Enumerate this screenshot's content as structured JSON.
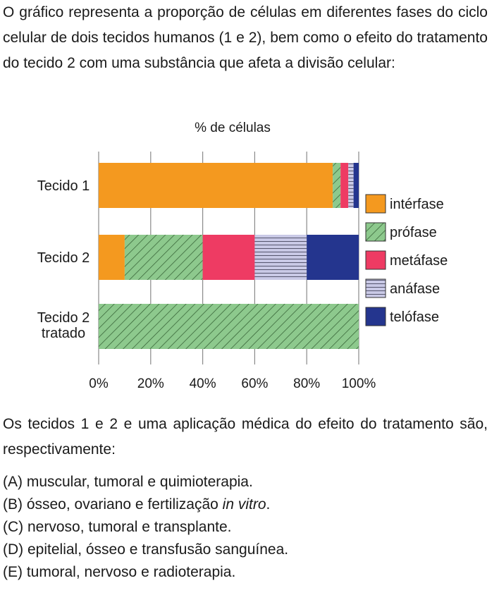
{
  "intro_text": "O gráfico representa a proporção de células em diferentes fases do ciclo celular de dois tecidos humanos (1 e 2), bem como o efeito do tratamento do tecido 2 com uma substância que afeta a divisão celular:",
  "question_text": "Os tecidos 1 e 2 e uma aplicação médica do efeito do tratamento são, respectivamente:",
  "options": [
    {
      "letter": "(A)",
      "parts": [
        "muscular, tumoral e quimioterapia."
      ]
    },
    {
      "letter": "(B)",
      "parts": [
        "ósseo, ovariano e fertilização ",
        "in vitro",
        "."
      ]
    },
    {
      "letter": "(C)",
      "parts": [
        "nervoso, tumoral e transplante."
      ]
    },
    {
      "letter": "(D)",
      "parts": [
        "epitelial, ósseo e transfusão sanguínea."
      ]
    },
    {
      "letter": "(E)",
      "parts": [
        "tumoral, nervoso e radioterapia."
      ]
    }
  ],
  "chart_data": {
    "type": "bar",
    "orientation": "horizontal",
    "stacked": true,
    "title": "% de células",
    "xlim": [
      0,
      100
    ],
    "x_ticks": [
      "0%",
      "20%",
      "40%",
      "60%",
      "80%",
      "100%"
    ],
    "categories": [
      {
        "label": [
          "Tecido 1"
        ]
      },
      {
        "label": [
          "Tecido 2"
        ]
      },
      {
        "label": [
          "Tecido 2",
          "tratado"
        ]
      }
    ],
    "series": [
      {
        "name": "intérfase",
        "color": "#F4991F",
        "pattern": "solid",
        "values": [
          90,
          10,
          0
        ]
      },
      {
        "name": "prófase",
        "color": "#8DC98D",
        "pattern": "diagonal-hatch",
        "values": [
          3,
          30,
          100
        ]
      },
      {
        "name": "metáfase",
        "color": "#EE3B63",
        "pattern": "solid",
        "values": [
          3,
          20,
          0
        ]
      },
      {
        "name": "anáfase",
        "color": "#C9C9E6",
        "pattern": "horizontal-lines",
        "values": [
          2,
          20,
          0
        ]
      },
      {
        "name": "telófase",
        "color": "#24358E",
        "pattern": "solid",
        "values": [
          2,
          20,
          0
        ]
      }
    ],
    "legend_position": "right",
    "grid": false
  }
}
